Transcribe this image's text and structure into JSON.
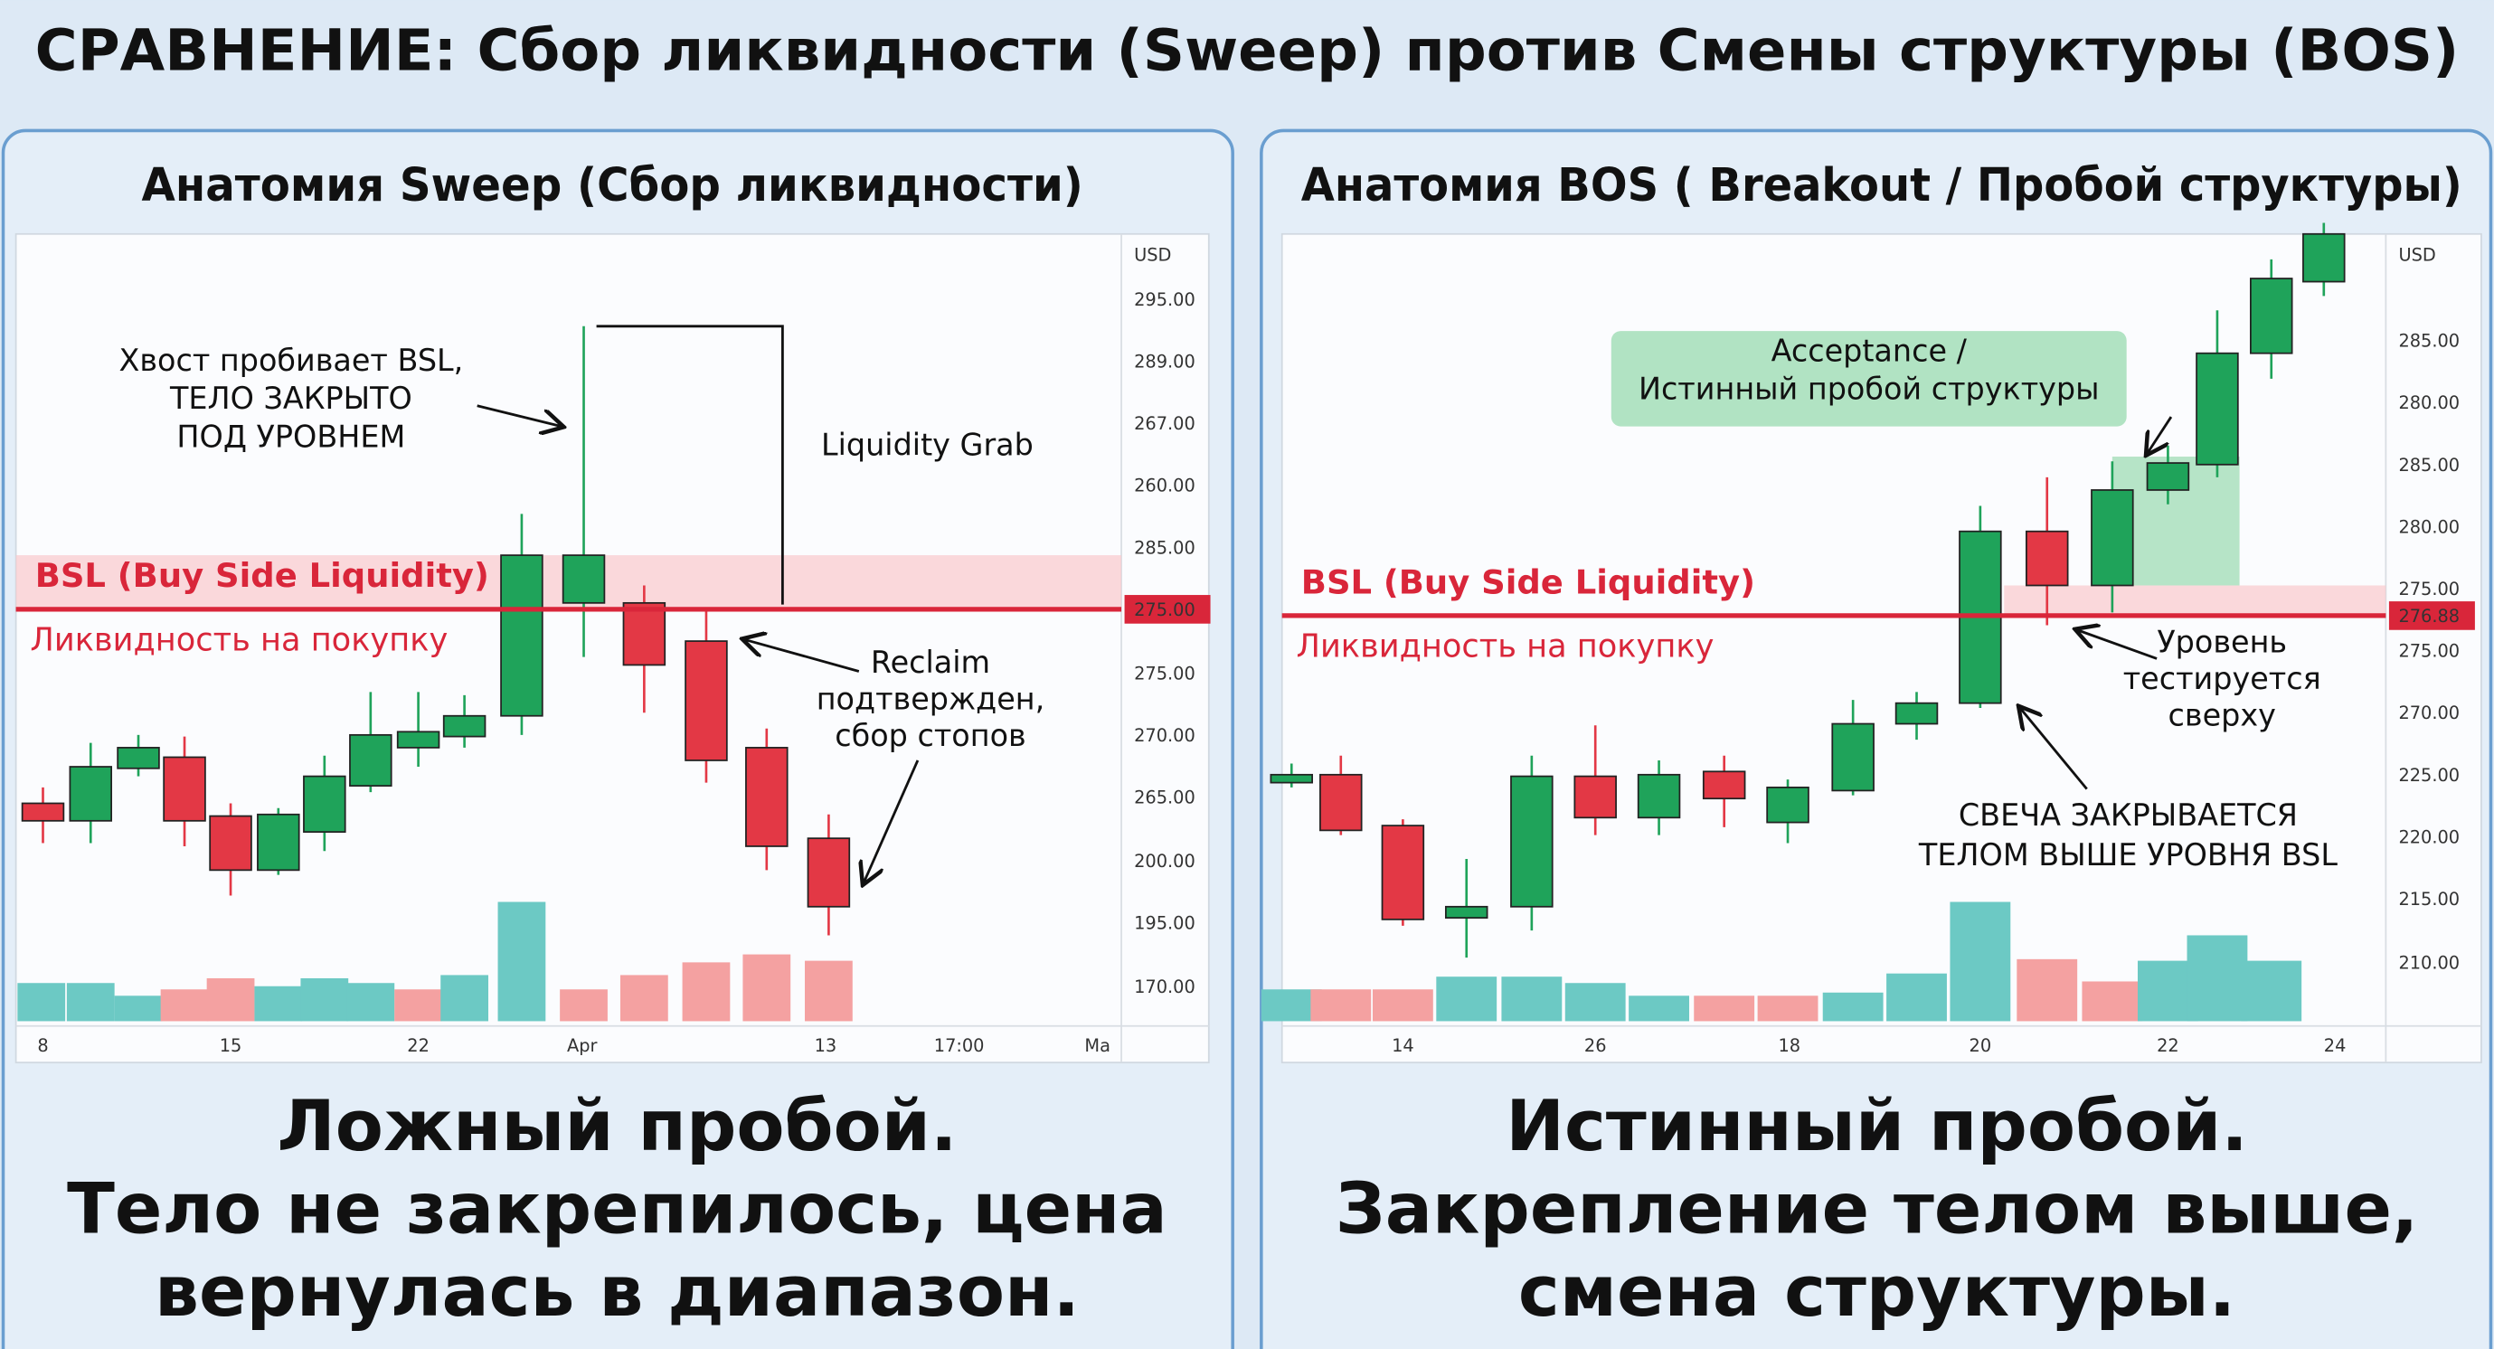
{
  "title": "СРАВНЕНИЕ: Сбор ликвидности (Sweep) против Смены структуры (BOS)",
  "panels": [
    {
      "heading": "Анатомия Sweep (Сбор ликвидности)",
      "level_label": "BSL (Buy Side Liquidity)",
      "level_sublabel": "Ликвидность на покупку",
      "currency": "USD",
      "price_ticks": [
        "295.00",
        "289.00",
        "267.00",
        "260.00",
        "285.00",
        "275.00",
        "270.00",
        "265.00",
        "200.00",
        "195.00",
        "170.00"
      ],
      "level_price": "275.00",
      "time_ticks": [
        "8",
        "15",
        "22",
        "Apr",
        "13",
        "17:00",
        "Ma"
      ],
      "annotations": [
        [
          "Хвост пробивает BSL,",
          "ТЕЛО ЗАКРЫТО",
          "ПОД УРОВНЕМ"
        ],
        [
          "Liquidity Grab"
        ],
        [
          "Reclaim",
          "подтвержден,",
          "сбор стопов"
        ]
      ],
      "caption": [
        "Ложный пробой.",
        "Тело не закрепилось, цена",
        "вернулась в диапазон."
      ]
    },
    {
      "heading": "Анатомия BOS ( Breakout / Пробой структуры)",
      "level_label": "BSL (Buy Side Liquidity)",
      "level_sublabel": "Ликвидность на покупку",
      "currency": "USD",
      "price_ticks": [
        "285.00",
        "280.00",
        "285.00",
        "280.00",
        "275.00",
        "275.00",
        "270.00",
        "225.00",
        "220.00",
        "215.00",
        "210.00"
      ],
      "level_price": "276.88",
      "time_ticks": [
        "14",
        "26",
        "18",
        "20",
        "22",
        "24"
      ],
      "annotations": [
        [
          "Acceptance /",
          "Истинный пробой структуры"
        ],
        [
          "Уровень",
          "тестируется",
          "сверху"
        ],
        [
          "СВЕЧА ЗАКРЫВАЕТСЯ",
          "ТЕЛОМ ВЫШЕ УРОВНЯ BSL"
        ]
      ],
      "caption": [
        "Истинный пробой.",
        "Закрепление телом выше,",
        "смена структуры."
      ]
    }
  ]
}
